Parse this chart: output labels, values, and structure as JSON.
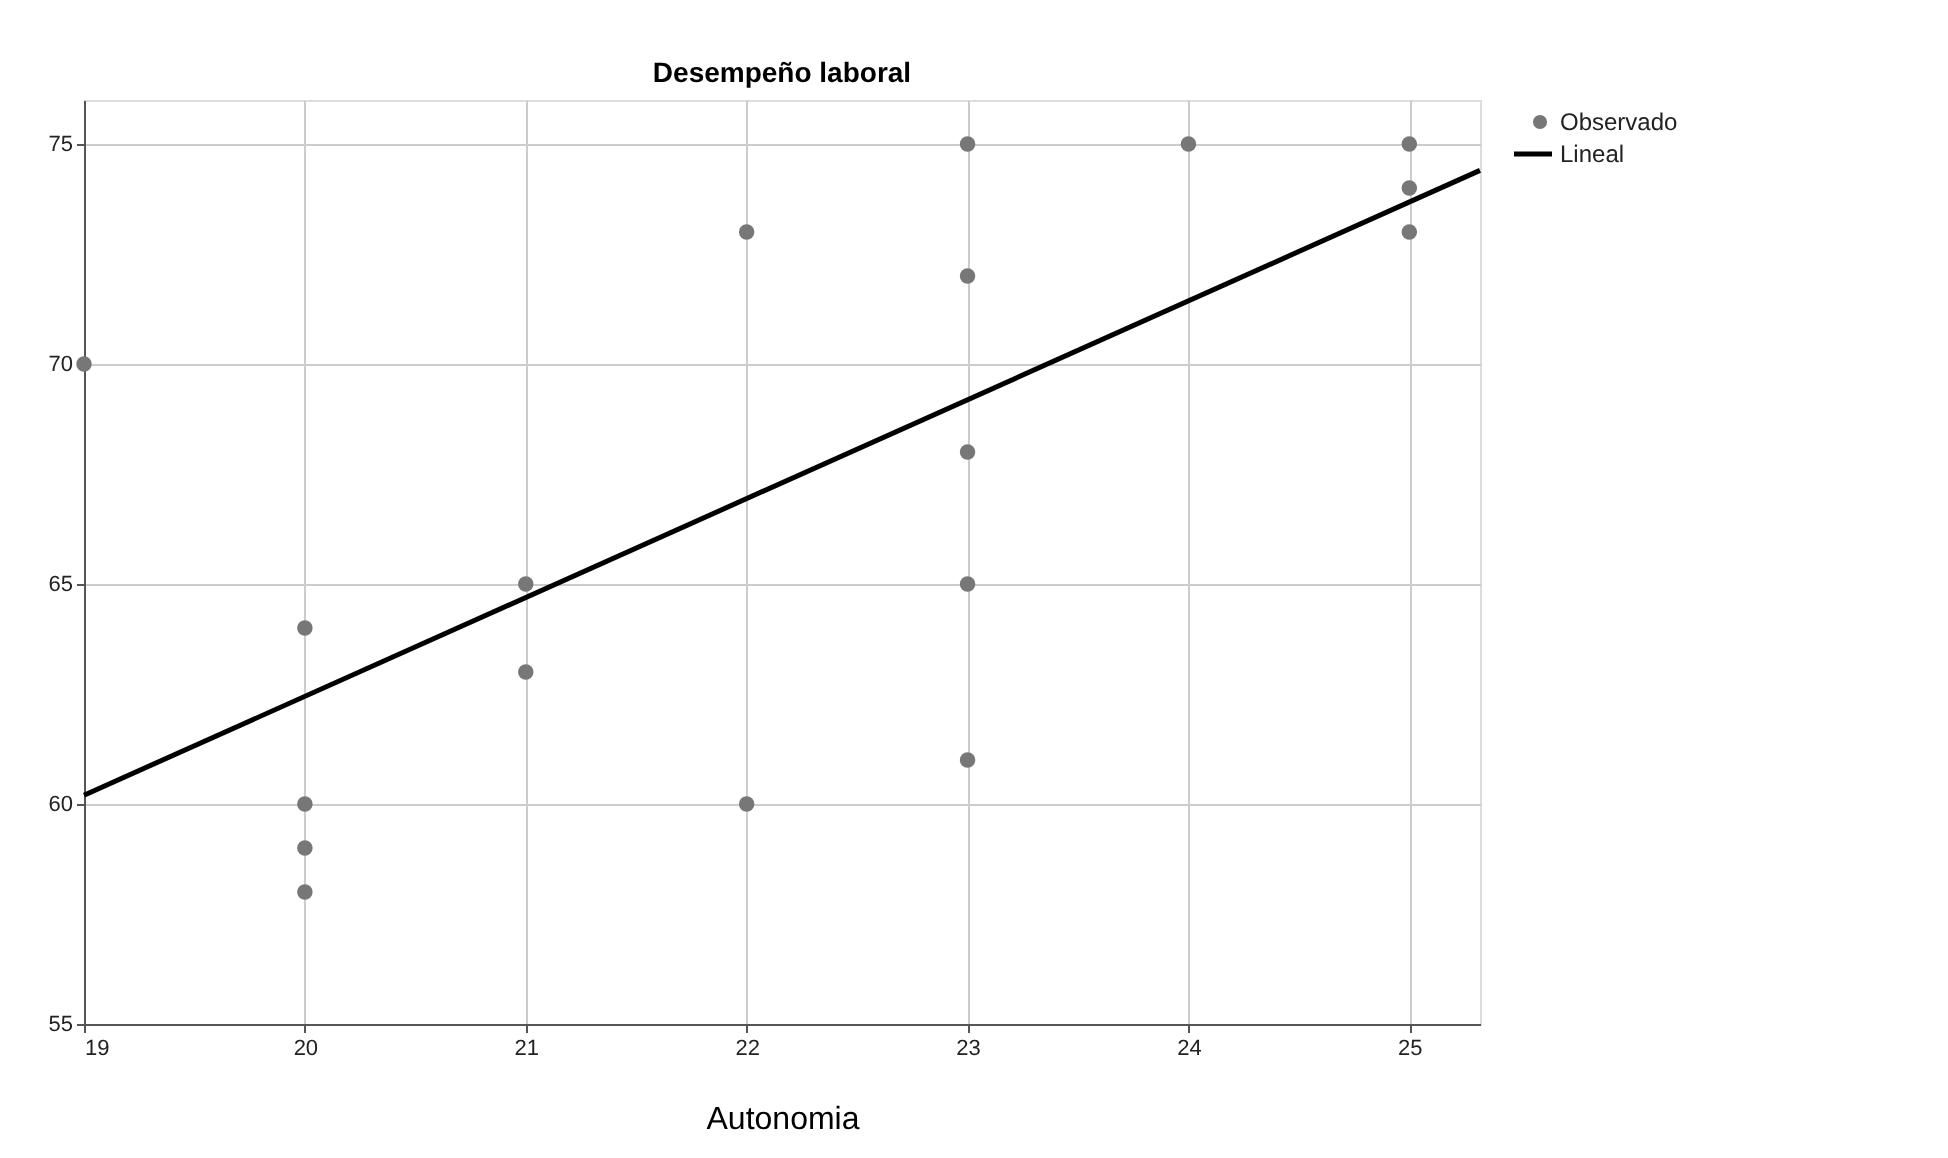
{
  "chart_data": {
    "type": "scatter",
    "title": "Desempeño laboral",
    "xlabel": "Autonomia",
    "xlim": [
      19,
      25.32
    ],
    "xticks": [
      19,
      20,
      21,
      22,
      23,
      24,
      25
    ],
    "ylim": [
      55,
      76
    ],
    "yticks": [
      55,
      60,
      65,
      70,
      75
    ],
    "grid": true,
    "legend": "top right",
    "series": [
      {
        "name": "Observado",
        "marker": "circle",
        "color": "#777777",
        "x": [
          19,
          20,
          20,
          20,
          20,
          21,
          21,
          22,
          22,
          23,
          23,
          23,
          23,
          23,
          24,
          25,
          25,
          25
        ],
        "values": [
          70,
          64,
          60,
          59,
          58,
          65,
          63,
          73,
          60,
          75,
          72,
          68,
          65,
          61,
          75,
          75,
          74,
          73
        ]
      },
      {
        "name": "Lineal",
        "type": "line",
        "color": "#000000",
        "line_style": "solid",
        "marker": "none",
        "x": [
          19,
          25.32
        ],
        "values": [
          60.2,
          74.4
        ]
      }
    ]
  }
}
